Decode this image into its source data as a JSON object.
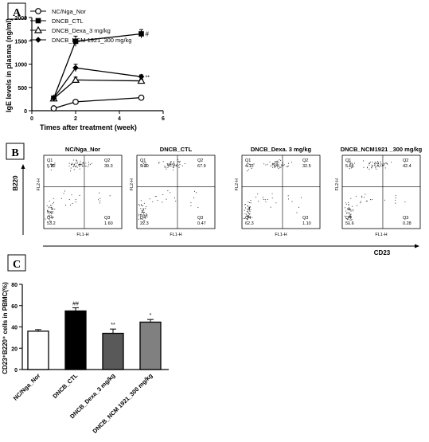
{
  "chart_data": [
    {
      "panel": "A",
      "type": "line",
      "ylabel": "IgE levels in plasma (ng/ml)",
      "xlabel": "Times after treatment (week)",
      "xlim": [
        0,
        6
      ],
      "ylim": [
        0,
        2000
      ],
      "xticks": [
        "0",
        "2",
        "4",
        "6"
      ],
      "yticks": [
        "0",
        "500",
        "1000",
        "1500",
        "2000"
      ],
      "legend_position": "top-left",
      "x": [
        1,
        2,
        5
      ],
      "series": [
        {
          "name": "NC/Nga_Nor",
          "marker": "open-circle",
          "values": [
            50,
            190,
            280
          ],
          "errors": [
            10,
            20,
            25
          ],
          "sig": ""
        },
        {
          "name": "DNCB_CTL",
          "marker": "filled-square",
          "values": [
            270,
            1490,
            1650
          ],
          "errors": [
            20,
            110,
            90
          ],
          "sig": "#"
        },
        {
          "name": "DNCB_Dexa_3 mg/kg",
          "marker": "open-triangle",
          "values": [
            260,
            660,
            640
          ],
          "errors": [
            20,
            60,
            40
          ],
          "sig": ""
        },
        {
          "name": "DNCB_NCM 1921_300 mg/kg",
          "marker": "filled-diamond",
          "values": [
            270,
            920,
            730
          ],
          "errors": [
            20,
            80,
            40
          ],
          "sig": "**"
        }
      ]
    },
    {
      "panel": "B",
      "type": "scatter",
      "y_axis_label": "B220",
      "x_axis_label": "CD23",
      "plot_ylabel": "FL2-H",
      "plot_xlabel": "FL1-H",
      "plots": [
        {
          "title": "NC/Nga_Nor",
          "q1": "5.82",
          "q2": "39.3",
          "q3": "1.60",
          "q4": "53.2"
        },
        {
          "title": "DNCB_CTL",
          "q1": "9.30",
          "q2": "67.9",
          "q3": "0.47",
          "q4": "22.3"
        },
        {
          "title": "DNCB_Dexa. 3 mg/kg",
          "q1": "4.12",
          "q2": "32.5",
          "q3": "1.10",
          "q4": "62.3"
        },
        {
          "title": "DNCB_NCM1921 _300 mg/kg",
          "q1": "5.66",
          "q2": "42.4",
          "q3": "0.28",
          "q4": "51.6"
        }
      ]
    },
    {
      "panel": "C",
      "type": "bar",
      "ylabel": "CD23⁺B220⁺ cells  in PBMC(%)",
      "ylim": [
        0,
        80
      ],
      "yticks": [
        "0",
        "20",
        "40",
        "60",
        "80"
      ],
      "categories": [
        "NC/Nga_Nor",
        "DNCB_CTL",
        "DNCB_Dexa_3 mg/kg",
        "DNCB_NCM 1921_300 mg/kg"
      ],
      "values": [
        36,
        55,
        34,
        44.5
      ],
      "errors": [
        1.5,
        3,
        4,
        2.5
      ],
      "colors": [
        "#ffffff",
        "#000000",
        "#595959",
        "#808080"
      ],
      "sig": [
        "",
        "##",
        "**",
        "*"
      ]
    }
  ],
  "panel_labels": {
    "a": "A",
    "b": "B",
    "c": "C"
  }
}
